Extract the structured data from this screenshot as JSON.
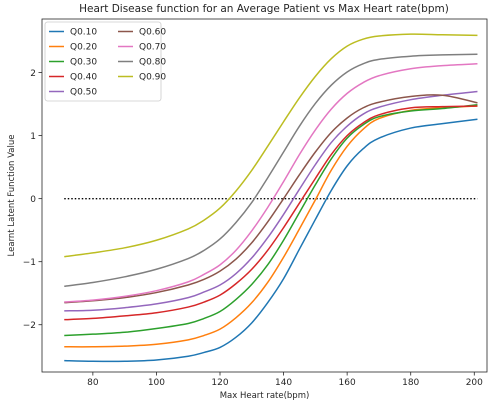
{
  "chart_data": {
    "type": "line",
    "title": "Heart Disease function for an Average Patient vs Max Heart rate(bpm)",
    "xlabel": "Max Heart rate(bpm)",
    "ylabel": "Learnt Latent Function Value",
    "xlim": [
      64,
      204
    ],
    "ylim": [
      -2.75,
      2.85
    ],
    "xticks": [
      80,
      100,
      120,
      140,
      160,
      180,
      200
    ],
    "yticks": [
      -2,
      -1,
      0,
      1,
      2
    ],
    "grid": false,
    "legend": "top-left, 2 columns",
    "reference_line": {
      "y": 0,
      "style": "dotted",
      "color": "#000000"
    },
    "x": [
      71,
      80,
      90,
      100,
      110,
      115,
      120,
      125,
      130,
      135,
      140,
      145,
      150,
      155,
      160,
      165,
      170,
      180,
      190,
      201
    ],
    "series": [
      {
        "name": "Q0.10",
        "color": "#1f77b4",
        "values": [
          -2.57,
          -2.58,
          -2.58,
          -2.56,
          -2.5,
          -2.44,
          -2.36,
          -2.2,
          -1.97,
          -1.65,
          -1.27,
          -0.8,
          -0.33,
          0.13,
          0.52,
          0.79,
          0.96,
          1.12,
          1.19,
          1.26
        ]
      },
      {
        "name": "Q0.20",
        "color": "#ff7f0e",
        "values": [
          -2.35,
          -2.35,
          -2.34,
          -2.31,
          -2.24,
          -2.17,
          -2.07,
          -1.89,
          -1.65,
          -1.33,
          -0.93,
          -0.48,
          -0.02,
          0.45,
          0.83,
          1.1,
          1.27,
          1.4,
          1.44,
          1.47
        ]
      },
      {
        "name": "Q0.30",
        "color": "#2ca02c",
        "values": [
          -2.17,
          -2.15,
          -2.12,
          -2.06,
          -1.98,
          -1.9,
          -1.79,
          -1.6,
          -1.36,
          -1.05,
          -0.66,
          -0.22,
          0.22,
          0.63,
          0.96,
          1.17,
          1.3,
          1.39,
          1.43,
          1.49
        ]
      },
      {
        "name": "Q0.40",
        "color": "#d62728",
        "values": [
          -1.92,
          -1.9,
          -1.86,
          -1.81,
          -1.72,
          -1.64,
          -1.53,
          -1.35,
          -1.12,
          -0.82,
          -0.46,
          -0.07,
          0.32,
          0.7,
          1.0,
          1.2,
          1.33,
          1.44,
          1.46,
          1.47
        ]
      },
      {
        "name": "Q0.50",
        "color": "#9467bd",
        "values": [
          -1.78,
          -1.77,
          -1.73,
          -1.67,
          -1.57,
          -1.48,
          -1.37,
          -1.19,
          -0.94,
          -0.62,
          -0.25,
          0.15,
          0.54,
          0.89,
          1.15,
          1.34,
          1.45,
          1.57,
          1.64,
          1.7
        ]
      },
      {
        "name": "Q0.60",
        "color": "#8c564b",
        "values": [
          -1.65,
          -1.62,
          -1.57,
          -1.49,
          -1.37,
          -1.28,
          -1.15,
          -0.96,
          -0.7,
          -0.37,
          0.0,
          0.38,
          0.74,
          1.05,
          1.28,
          1.44,
          1.53,
          1.62,
          1.64,
          1.52
        ]
      },
      {
        "name": "Q0.70",
        "color": "#e377c2",
        "values": [
          -1.64,
          -1.61,
          -1.55,
          -1.46,
          -1.32,
          -1.2,
          -1.05,
          -0.82,
          -0.51,
          -0.14,
          0.27,
          0.7,
          1.09,
          1.42,
          1.67,
          1.84,
          1.95,
          2.06,
          2.11,
          2.14
        ]
      },
      {
        "name": "Q0.80",
        "color": "#7f7f7f",
        "values": [
          -1.39,
          -1.33,
          -1.24,
          -1.12,
          -0.95,
          -0.82,
          -0.64,
          -0.38,
          -0.06,
          0.33,
          0.74,
          1.15,
          1.51,
          1.8,
          2.01,
          2.14,
          2.21,
          2.26,
          2.28,
          2.29
        ]
      },
      {
        "name": "Q0.90",
        "color": "#bcbd22",
        "values": [
          -0.92,
          -0.86,
          -0.78,
          -0.66,
          -0.48,
          -0.34,
          -0.15,
          0.12,
          0.45,
          0.83,
          1.22,
          1.6,
          1.94,
          2.22,
          2.42,
          2.53,
          2.58,
          2.61,
          2.6,
          2.59
        ]
      }
    ]
  }
}
